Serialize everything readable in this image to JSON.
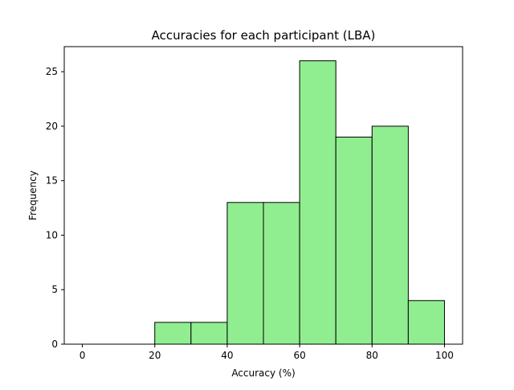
{
  "chart_data": {
    "type": "bar",
    "title": "Accuracies for each participant (LBA)",
    "xlabel": "Accuracy (%)",
    "ylabel": "Frequency",
    "bin_edges": [
      0,
      10,
      20,
      30,
      40,
      50,
      60,
      70,
      80,
      90,
      100
    ],
    "values": [
      0,
      0,
      2,
      2,
      13,
      13,
      26,
      19,
      20,
      4
    ],
    "xlim": [
      -5,
      105
    ],
    "ylim": [
      0,
      27.3
    ],
    "xticks": [
      0,
      20,
      40,
      60,
      80,
      100
    ],
    "yticks": [
      0,
      5,
      10,
      15,
      20,
      25
    ],
    "grid": false,
    "bar_color": "#90ee90",
    "edge_color": "#000000"
  }
}
